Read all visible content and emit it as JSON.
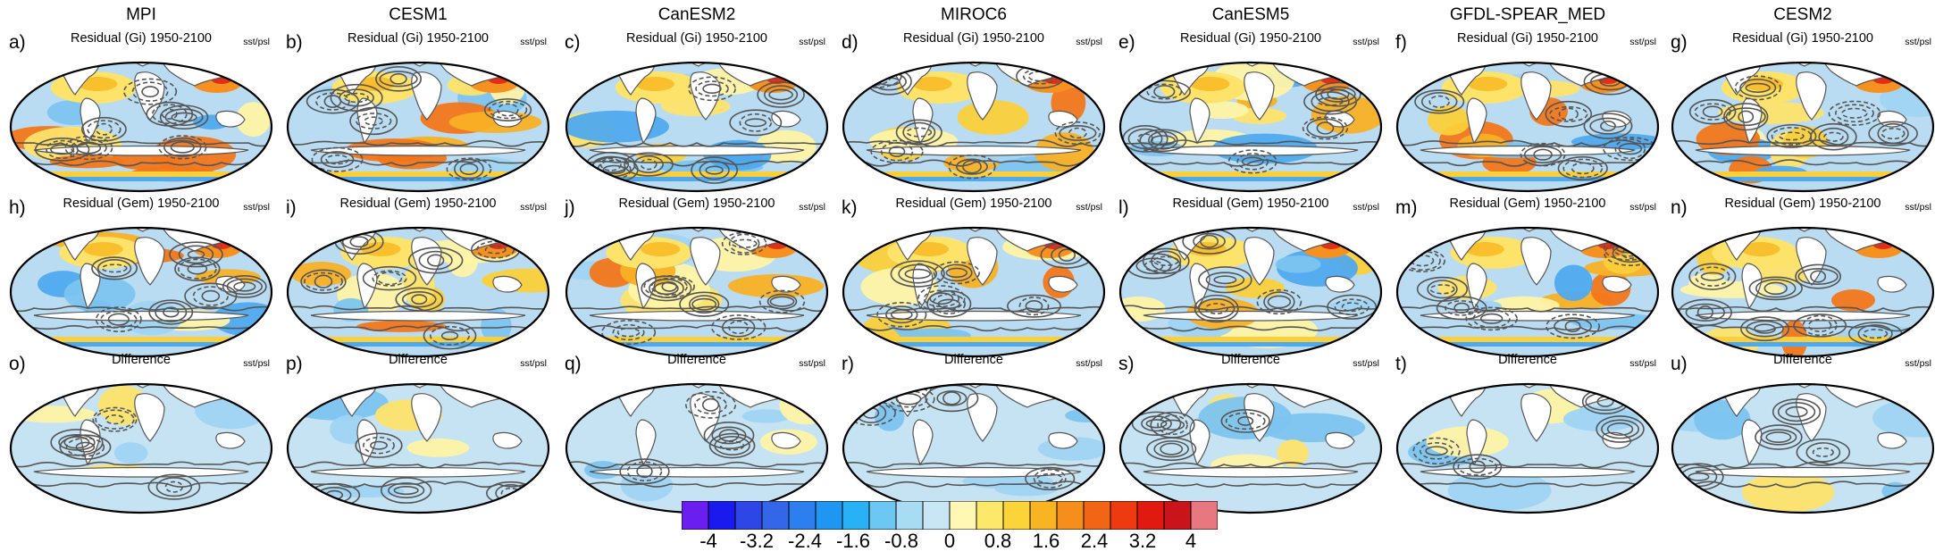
{
  "figure": {
    "models": [
      "MPI",
      "CESM1",
      "CanESM2",
      "MIROC6",
      "CanESM5",
      "GFDL-SPEAR_MED",
      "CESM2"
    ],
    "row_titles": [
      "Residual (Gi) 1950-2100",
      "Residual (Gem) 1950-2100",
      "Difference"
    ],
    "variables_label": "sst/psl",
    "panel_letters": [
      [
        "a)",
        "b)",
        "c)",
        "d)",
        "e)",
        "f)",
        "g)"
      ],
      [
        "h)",
        "i)",
        "j)",
        "k)",
        "l)",
        "m)",
        "n)"
      ],
      [
        "o)",
        "p)",
        "q)",
        "r)",
        "s)",
        "t)",
        "u)"
      ]
    ]
  },
  "colorbar": {
    "labels": [
      "-4",
      "-3.2",
      "-2.4",
      "-1.6",
      "-0.8",
      "0",
      "0.8",
      "1.6",
      "2.4",
      "3.2",
      "4"
    ],
    "colors": [
      "#6a1ff0",
      "#1a1aee",
      "#2f46e6",
      "#3366e8",
      "#2d7ff0",
      "#1e96f2",
      "#28b2f5",
      "#6cc8f2",
      "#a8dcf3",
      "#c9e6f4",
      "#fff7b3",
      "#fde86a",
      "#fbd43a",
      "#f8b521",
      "#f58e1a",
      "#f26515",
      "#ee3a10",
      "#e01a10",
      "#c8141a",
      "#e87880"
    ]
  }
}
